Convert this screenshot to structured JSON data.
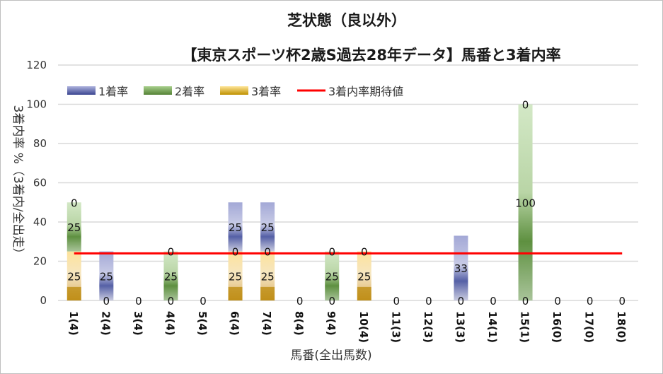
{
  "chart_data": {
    "type": "bar",
    "stacked": true,
    "title": "芝状態（良以外）",
    "subtitle": "【東京スポーツ杯2歳S過去28年データ】馬番と3着内率",
    "xlabel": "馬番(全出馬数)",
    "ylabel": "3着内率 %（3着内/全出走）",
    "ylim": [
      0,
      120
    ],
    "yticks": [
      0,
      20,
      40,
      60,
      80,
      100,
      120
    ],
    "grid": true,
    "legend_position": "top-left",
    "categories": [
      "1(4)",
      "2(4)",
      "3(4)",
      "4(4)",
      "5(4)",
      "6(4)",
      "7(4)",
      "8(4)",
      "9(4)",
      "10(4)",
      "11(3)",
      "12(3)",
      "13(3)",
      "14(1)",
      "15(1)",
      "16(0)",
      "17(0)",
      "18(0)"
    ],
    "series": [
      {
        "name": "3着率",
        "color": "#d9a92e",
        "values": [
          25,
          0,
          0,
          0,
          0,
          25,
          25,
          0,
          0,
          25,
          0,
          0,
          0,
          0,
          0,
          0,
          0,
          0
        ]
      },
      {
        "name": "2着率",
        "color": "#6a9a4a",
        "values": [
          25,
          0,
          0,
          25,
          0,
          0,
          0,
          0,
          25,
          0,
          0,
          0,
          0,
          0,
          100,
          0,
          0,
          0
        ]
      },
      {
        "name": "1着率",
        "color": "#6f78bd",
        "values": [
          0,
          25,
          0,
          0,
          0,
          25,
          25,
          0,
          0,
          0,
          0,
          0,
          33,
          0,
          0,
          0,
          0,
          0
        ]
      }
    ],
    "line": {
      "name": "3着内率期待値",
      "color": "#ff0000",
      "value": 24
    },
    "legend": [
      "1着率",
      "2着率",
      "3着率",
      "3着内率期待値"
    ]
  }
}
